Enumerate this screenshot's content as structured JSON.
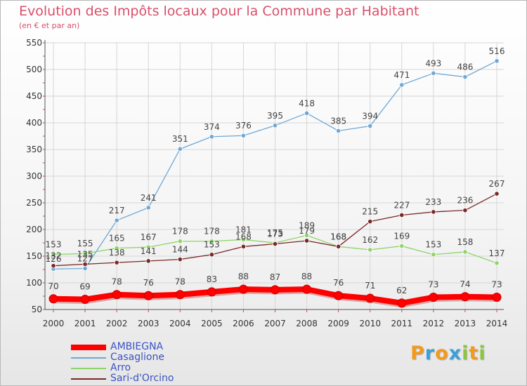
{
  "title": "Evolution des Impôts locaux pour la Commune par Habitant",
  "subtitle": "(en € et par an)",
  "brand": {
    "letters": [
      "P",
      "r",
      "o",
      "x",
      "i",
      "t",
      "i"
    ],
    "colors": [
      "#f39a1e",
      "#3aa0d8",
      "#f39a1e",
      "#3aa0d8",
      "#8cc63f",
      "#f39a1e",
      "#8cc63f"
    ]
  },
  "chart_data": {
    "type": "line",
    "x": [
      "2000",
      "2001",
      "2002",
      "2003",
      "2004",
      "2005",
      "2006",
      "2007",
      "2008",
      "2009",
      "2010",
      "2011",
      "2012",
      "2013",
      "2014"
    ],
    "ylim": [
      50,
      550
    ],
    "yticks": [
      "50",
      "100",
      "150",
      "200",
      "250",
      "300",
      "350",
      "400",
      "450",
      "500",
      "550"
    ],
    "grid": true,
    "legend_position": "bottom-left",
    "series": [
      {
        "name": "AMBIEGNA",
        "color": "#ff0000",
        "values": [
          70,
          69,
          78,
          76,
          78,
          83,
          88,
          87,
          88,
          76,
          71,
          62,
          73,
          74,
          73
        ],
        "labels": [
          "70",
          "69",
          "78",
          "76",
          "78",
          "83",
          "88",
          "87",
          "88",
          "76",
          "71",
          "62",
          "73",
          "74",
          "73"
        ]
      },
      {
        "name": "Casaglione",
        "color": "#6fa8d6",
        "values": [
          126,
          127,
          217,
          241,
          351,
          374,
          376,
          395,
          418,
          385,
          394,
          471,
          493,
          486,
          516
        ],
        "labels": [
          "126",
          "127",
          "217",
          "241",
          "351",
          "374",
          "376",
          "395",
          "418",
          "385",
          "394",
          "471",
          "493",
          "486",
          "516"
        ]
      },
      {
        "name": "Arro",
        "color": "#8fd46a",
        "values": [
          153,
          155,
          165,
          167,
          178,
          178,
          181,
          175,
          189,
          168,
          162,
          169,
          153,
          158,
          137
        ],
        "labels": [
          "153",
          "155",
          "165",
          "167",
          "178",
          "178",
          "181",
          "175",
          "189",
          "168",
          "162",
          "169",
          "153",
          "158",
          "137"
        ]
      },
      {
        "name": "Sari-d'Orcino",
        "color": "#7a2828",
        "values": [
          132,
          135,
          138,
          141,
          144,
          153,
          168,
          173,
          179,
          168,
          215,
          227,
          233,
          236,
          267
        ],
        "labels": [
          "132",
          "135",
          "138",
          "141",
          "144",
          "153",
          "168",
          "173",
          "179",
          "168",
          "215",
          "227",
          "233",
          "236",
          "267"
        ]
      }
    ]
  }
}
